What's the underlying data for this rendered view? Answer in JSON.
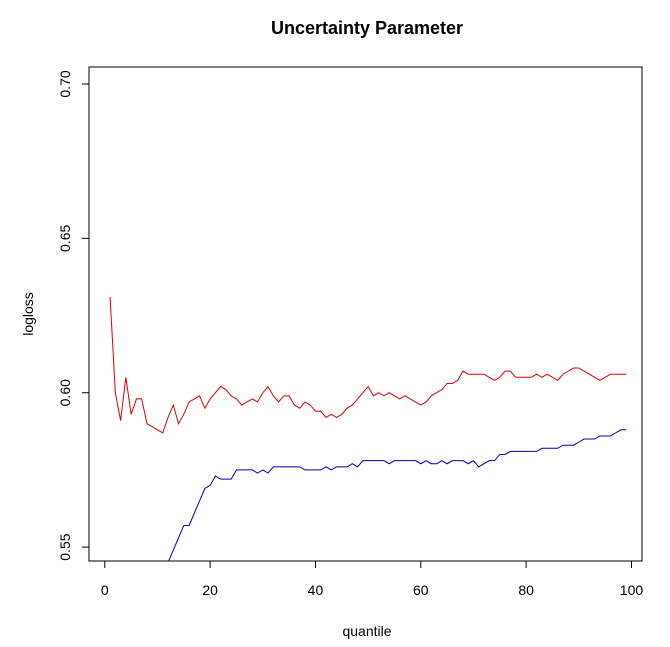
{
  "chart_data": {
    "type": "line",
    "title": "Uncertainty Parameter",
    "xlabel": "quantile",
    "ylabel": "logloss",
    "xlim": [
      -3,
      102
    ],
    "ylim": [
      0.5455,
      0.7055
    ],
    "xticks": [
      "0",
      "20",
      "40",
      "60",
      "80",
      "100"
    ],
    "yticks": [
      "0.55",
      "0.60",
      "0.65",
      "0.70"
    ],
    "grid": false,
    "series": [
      {
        "color": "#dd0000",
        "x": [
          1,
          2,
          3,
          4,
          5,
          6,
          7,
          8,
          9,
          10,
          11,
          12,
          13,
          14,
          15,
          16,
          17,
          18,
          19,
          20,
          21,
          22,
          23,
          24,
          25,
          26,
          27,
          28,
          29,
          30,
          31,
          32,
          33,
          34,
          35,
          36,
          37,
          38,
          39,
          40,
          41,
          42,
          43,
          44,
          45,
          46,
          47,
          48,
          49,
          50,
          51,
          52,
          53,
          54,
          55,
          56,
          57,
          58,
          59,
          60,
          61,
          62,
          63,
          64,
          65,
          66,
          67,
          68,
          69,
          70,
          71,
          72,
          73,
          74,
          75,
          76,
          77,
          78,
          79,
          80,
          81,
          82,
          83,
          84,
          85,
          86,
          87,
          88,
          89,
          90,
          91,
          92,
          93,
          94,
          95,
          96,
          97,
          98,
          99
        ],
        "y": [
          0.631,
          0.6,
          0.591,
          0.605,
          0.593,
          0.598,
          0.598,
          0.59,
          0.589,
          0.588,
          0.587,
          0.592,
          0.596,
          0.59,
          0.593,
          0.597,
          0.598,
          0.599,
          0.595,
          0.598,
          0.6,
          0.602,
          0.601,
          0.599,
          0.598,
          0.596,
          0.597,
          0.598,
          0.597,
          0.6,
          0.602,
          0.599,
          0.597,
          0.599,
          0.599,
          0.596,
          0.595,
          0.597,
          0.596,
          0.594,
          0.594,
          0.592,
          0.593,
          0.592,
          0.593,
          0.595,
          0.596,
          0.598,
          0.6,
          0.602,
          0.599,
          0.6,
          0.599,
          0.6,
          0.599,
          0.598,
          0.599,
          0.598,
          0.597,
          0.596,
          0.597,
          0.599,
          0.6,
          0.601,
          0.603,
          0.603,
          0.604,
          0.607,
          0.606,
          0.606,
          0.606,
          0.606,
          0.605,
          0.604,
          0.605,
          0.607,
          0.607,
          0.605,
          0.605,
          0.605,
          0.605,
          0.606,
          0.605,
          0.606,
          0.605,
          0.604,
          0.606,
          0.607,
          0.608,
          0.608,
          0.607,
          0.606,
          0.605,
          0.604,
          0.605,
          0.606,
          0.606,
          0.606,
          0.606
        ]
      },
      {
        "color": "#0000bb",
        "x": [
          12,
          13,
          14,
          15,
          16,
          17,
          18,
          19,
          20,
          21,
          22,
          23,
          24,
          25,
          26,
          27,
          28,
          29,
          30,
          31,
          32,
          33,
          34,
          35,
          36,
          37,
          38,
          39,
          40,
          41,
          42,
          43,
          44,
          45,
          46,
          47,
          48,
          49,
          50,
          51,
          52,
          53,
          54,
          55,
          56,
          57,
          58,
          59,
          60,
          61,
          62,
          63,
          64,
          65,
          66,
          67,
          68,
          69,
          70,
          71,
          72,
          73,
          74,
          75,
          76,
          77,
          78,
          79,
          80,
          81,
          82,
          83,
          84,
          85,
          86,
          87,
          88,
          89,
          90,
          91,
          92,
          93,
          94,
          95,
          96,
          97,
          98,
          99
        ],
        "y": [
          0.545,
          0.549,
          0.553,
          0.557,
          0.557,
          0.561,
          0.565,
          0.569,
          0.57,
          0.573,
          0.572,
          0.572,
          0.572,
          0.575,
          0.575,
          0.575,
          0.575,
          0.574,
          0.575,
          0.574,
          0.576,
          0.576,
          0.576,
          0.576,
          0.576,
          0.576,
          0.575,
          0.575,
          0.575,
          0.575,
          0.576,
          0.575,
          0.576,
          0.576,
          0.576,
          0.577,
          0.576,
          0.578,
          0.578,
          0.578,
          0.578,
          0.578,
          0.577,
          0.578,
          0.578,
          0.578,
          0.578,
          0.578,
          0.577,
          0.578,
          0.577,
          0.577,
          0.578,
          0.577,
          0.578,
          0.578,
          0.578,
          0.577,
          0.578,
          0.576,
          0.577,
          0.578,
          0.578,
          0.58,
          0.58,
          0.581,
          0.581,
          0.581,
          0.581,
          0.581,
          0.581,
          0.582,
          0.582,
          0.582,
          0.582,
          0.583,
          0.583,
          0.583,
          0.584,
          0.585,
          0.585,
          0.585,
          0.586,
          0.586,
          0.586,
          0.587,
          0.588,
          0.588
        ]
      }
    ]
  }
}
